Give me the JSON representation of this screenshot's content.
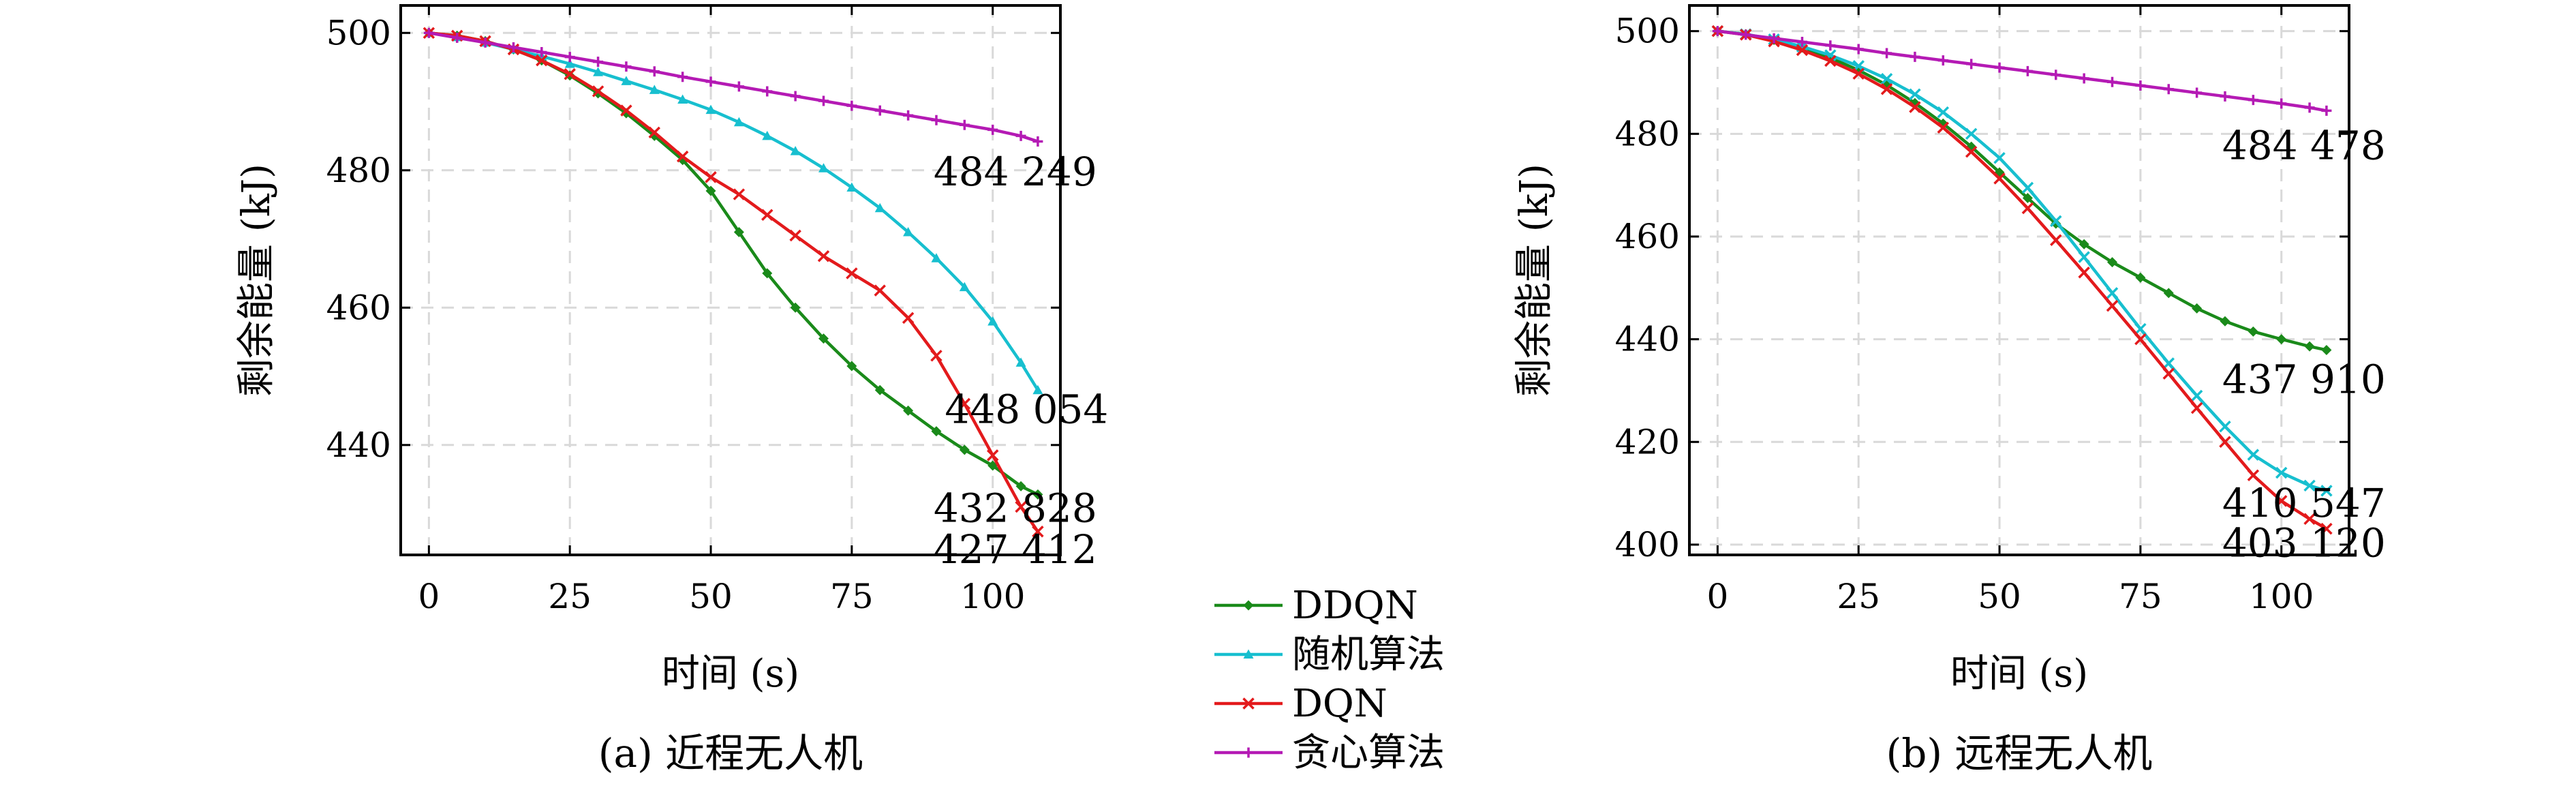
{
  "legend": {
    "items": [
      {
        "label": "DDQN",
        "color": "#1a8a1a"
      },
      {
        "label": "随机算法",
        "color": "#17bfcf"
      },
      {
        "label": "DQN",
        "color": "#e31a1c"
      },
      {
        "label": "贪心算法",
        "color": "#b41ab4"
      }
    ]
  },
  "chart_data": [
    {
      "type": "line",
      "caption": "(a) 近程无人机",
      "xlabel": "时间 (s)",
      "ylabel": "剩余能量 (kJ)",
      "xlim": [
        -5,
        112
      ],
      "ylim": [
        424,
        504
      ],
      "xticks": [
        "0",
        "25",
        "50",
        "75",
        "100"
      ],
      "xtick_values": [
        0,
        25,
        50,
        75,
        100
      ],
      "yticks": [
        "440",
        "460",
        "480",
        "500"
      ],
      "ytick_values": [
        440,
        460,
        480,
        500
      ],
      "grid": true,
      "annotations": [
        {
          "text": "484 249",
          "x": 104,
          "y": 479.8
        },
        {
          "text": "448 054",
          "x": 106,
          "y": 445.2
        },
        {
          "text": "432 828",
          "x": 104,
          "y": 430.8
        },
        {
          "text": "427 412",
          "x": 104,
          "y": 424.8
        }
      ],
      "series": [
        {
          "name": "DDQN",
          "color": "#1a8a1a",
          "marker": "diamond",
          "x": [
            0,
            5,
            10,
            15,
            20,
            25,
            30,
            35,
            40,
            45,
            50,
            55,
            60,
            65,
            70,
            75,
            80,
            85,
            90,
            95,
            100,
            105,
            108
          ],
          "y": [
            500,
            499.6,
            498.8,
            497.6,
            496,
            493.8,
            491.2,
            488.3,
            485,
            481.5,
            477,
            471,
            465,
            460,
            455.5,
            451.5,
            448,
            445,
            442,
            439.3,
            437,
            434,
            432.8
          ]
        },
        {
          "name": "随机算法",
          "color": "#17bfcf",
          "marker": "triangle",
          "x": [
            0,
            5,
            10,
            15,
            20,
            25,
            30,
            35,
            40,
            45,
            50,
            55,
            60,
            65,
            70,
            75,
            80,
            85,
            90,
            95,
            100,
            105,
            108
          ],
          "y": [
            500,
            499.4,
            498.6,
            497.6,
            496.6,
            495.5,
            494.3,
            493,
            491.7,
            490.3,
            488.8,
            487,
            485,
            482.8,
            480.3,
            477.5,
            474.5,
            471,
            467.2,
            463,
            458,
            452,
            448
          ]
        },
        {
          "name": "DQN",
          "color": "#e31a1c",
          "marker": "x",
          "x": [
            0,
            5,
            10,
            15,
            20,
            25,
            30,
            35,
            40,
            45,
            50,
            55,
            60,
            65,
            70,
            75,
            80,
            85,
            90,
            95,
            100,
            105,
            108
          ],
          "y": [
            500,
            499.6,
            498.8,
            497.6,
            496,
            494,
            491.5,
            488.7,
            485.5,
            482,
            479,
            476.5,
            473.5,
            470.5,
            467.5,
            465,
            462.5,
            458.5,
            453,
            446,
            438.5,
            431,
            427.4
          ]
        },
        {
          "name": "贪心算法",
          "color": "#b41ab4",
          "marker": "plus",
          "x": [
            0,
            5,
            10,
            15,
            20,
            25,
            30,
            35,
            40,
            45,
            50,
            55,
            60,
            65,
            70,
            75,
            80,
            85,
            90,
            95,
            100,
            105,
            108
          ],
          "y": [
            500,
            499.3,
            498.6,
            497.9,
            497.2,
            496.5,
            495.8,
            495.1,
            494.4,
            493.6,
            492.9,
            492.2,
            491.5,
            490.8,
            490.1,
            489.4,
            488.7,
            488,
            487.3,
            486.6,
            485.9,
            485,
            484.2
          ]
        }
      ]
    },
    {
      "type": "line",
      "caption": "(b) 远程无人机",
      "xlabel": "时间 (s)",
      "ylabel": "剩余能量 (kJ)",
      "xlim": [
        -5,
        112
      ],
      "ylim": [
        398,
        505
      ],
      "xticks": [
        "0",
        "25",
        "50",
        "75",
        "100"
      ],
      "xtick_values": [
        0,
        25,
        50,
        75,
        100
      ],
      "yticks": [
        "400",
        "420",
        "440",
        "460",
        "480",
        "500"
      ],
      "ytick_values": [
        400,
        420,
        440,
        460,
        480,
        500
      ],
      "grid": true,
      "annotations": [
        {
          "text": "484 478",
          "x": 104,
          "y": 477.7
        },
        {
          "text": "437 910",
          "x": 104,
          "y": 432.2
        },
        {
          "text": "410 547",
          "x": 104,
          "y": 408.1
        },
        {
          "text": "403 120",
          "x": 104,
          "y": 400.3
        }
      ],
      "series": [
        {
          "name": "DDQN",
          "color": "#1a8a1a",
          "marker": "diamond",
          "x": [
            0,
            5,
            10,
            15,
            20,
            25,
            30,
            35,
            40,
            45,
            50,
            55,
            60,
            65,
            70,
            75,
            80,
            85,
            90,
            95,
            100,
            105,
            108
          ],
          "y": [
            500,
            499.4,
            498.3,
            496.8,
            494.8,
            492.4,
            489.5,
            486,
            482,
            477.5,
            472.5,
            467.5,
            462.5,
            458.5,
            455,
            452,
            449,
            446,
            443.5,
            441.5,
            440,
            438.6,
            437.9
          ]
        },
        {
          "name": "随机算法",
          "color": "#17bfcf",
          "marker": "x",
          "x": [
            0,
            5,
            10,
            15,
            20,
            25,
            30,
            35,
            40,
            45,
            50,
            55,
            60,
            65,
            70,
            75,
            80,
            85,
            90,
            95,
            100,
            105,
            108
          ],
          "y": [
            500,
            499.4,
            498.4,
            497,
            495.3,
            493.2,
            490.7,
            487.7,
            484.2,
            480,
            475.3,
            469.5,
            463,
            456,
            449,
            442,
            435.3,
            429,
            423,
            417.5,
            414,
            411.5,
            410.5
          ]
        },
        {
          "name": "DQN",
          "color": "#e31a1c",
          "marker": "x",
          "x": [
            0,
            5,
            10,
            15,
            20,
            25,
            30,
            35,
            40,
            45,
            50,
            55,
            60,
            65,
            70,
            75,
            80,
            85,
            90,
            95,
            100,
            105,
            108
          ],
          "y": [
            500,
            499.3,
            498,
            496.3,
            494.2,
            491.7,
            488.7,
            485.2,
            481.2,
            476.5,
            471.3,
            465.5,
            459.3,
            453,
            446.5,
            440,
            433.3,
            426.6,
            420,
            413.5,
            408.5,
            405,
            403.1
          ]
        },
        {
          "name": "贪心算法",
          "color": "#b41ab4",
          "marker": "plus",
          "x": [
            0,
            5,
            10,
            15,
            20,
            25,
            30,
            35,
            40,
            45,
            50,
            55,
            60,
            65,
            70,
            75,
            80,
            85,
            90,
            95,
            100,
            105,
            108
          ],
          "y": [
            500,
            499.3,
            498.6,
            497.9,
            497.2,
            496.5,
            495.7,
            495,
            494.3,
            493.6,
            492.9,
            492.2,
            491.5,
            490.8,
            490.1,
            489.4,
            488.7,
            488,
            487.3,
            486.6,
            485.9,
            485.1,
            484.5
          ]
        }
      ]
    }
  ]
}
